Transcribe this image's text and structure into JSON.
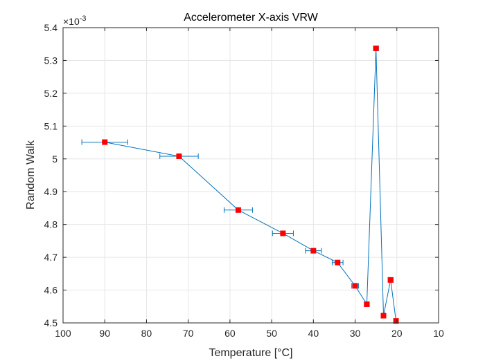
{
  "chart_data": {
    "type": "line",
    "title": "Accelerometer X-axis VRW",
    "xlabel": "Temperature [°C]",
    "ylabel": "Random Walk",
    "y_exponent_label": "×10",
    "y_exponent_power": "-3",
    "x_reversed": true,
    "xlim": [
      10,
      100
    ],
    "ylim": [
      4.5,
      5.4
    ],
    "x_ticks": [
      {
        "value": 100,
        "label": "100"
      },
      {
        "value": 90,
        "label": "90"
      },
      {
        "value": 80,
        "label": "80"
      },
      {
        "value": 70,
        "label": "70"
      },
      {
        "value": 60,
        "label": "60"
      },
      {
        "value": 50,
        "label": "50"
      },
      {
        "value": 40,
        "label": "40"
      },
      {
        "value": 30,
        "label": "30"
      },
      {
        "value": 20,
        "label": "20"
      },
      {
        "value": 10,
        "label": "10"
      }
    ],
    "y_ticks": [
      {
        "value": 4.5,
        "label": "4.5"
      },
      {
        "value": 4.6,
        "label": "4.6"
      },
      {
        "value": 4.7,
        "label": "4.7"
      },
      {
        "value": 4.8,
        "label": "4.8"
      },
      {
        "value": 4.9,
        "label": "4.9"
      },
      {
        "value": 5.0,
        "label": "5"
      },
      {
        "value": 5.1,
        "label": "5.1"
      },
      {
        "value": 5.2,
        "label": "5.2"
      },
      {
        "value": 5.3,
        "label": "5.3"
      },
      {
        "value": 5.4,
        "label": "5.4"
      }
    ],
    "grid": true,
    "series": [
      {
        "line_color": "#0072bd",
        "marker_color": "#ff0000",
        "points": [
          {
            "x": 90.0,
            "y": 5.051,
            "xerr": 5.5
          },
          {
            "x": 72.2,
            "y": 5.008,
            "xerr": 4.6
          },
          {
            "x": 58.0,
            "y": 4.844,
            "xerr": 3.4
          },
          {
            "x": 47.3,
            "y": 4.773,
            "xerr": 2.5
          },
          {
            "x": 40.0,
            "y": 4.72,
            "xerr": 1.9
          },
          {
            "x": 34.2,
            "y": 4.684,
            "xerr": 1.3
          },
          {
            "x": 30.0,
            "y": 4.613,
            "xerr": 0.8
          },
          {
            "x": 27.2,
            "y": 4.557,
            "xerr": 0.6
          },
          {
            "x": 25.0,
            "y": 5.337,
            "xerr": 0.6
          },
          {
            "x": 23.2,
            "y": 4.522,
            "xerr": 0.4
          },
          {
            "x": 21.5,
            "y": 4.631,
            "xerr": 0.6
          },
          {
            "x": 20.2,
            "y": 4.506,
            "xerr": 0.4
          }
        ]
      }
    ]
  }
}
